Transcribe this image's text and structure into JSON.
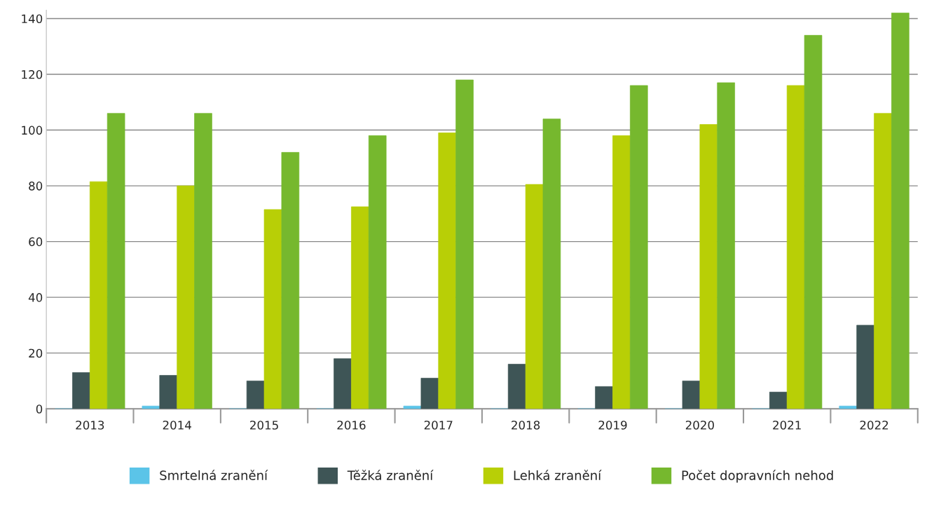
{
  "chart_data": {
    "type": "bar",
    "categories": [
      "2013",
      "2014",
      "2015",
      "2016",
      "2017",
      "2018",
      "2019",
      "2020",
      "2021",
      "2022"
    ],
    "series": [
      {
        "name": "Smrtelná zranění",
        "color": "#5bc4e8",
        "values": [
          0,
          1,
          0,
          0,
          1,
          0,
          0,
          0,
          0,
          1
        ]
      },
      {
        "name": "Těžká zranění",
        "color": "#3e5556",
        "values": [
          13,
          12,
          10,
          18,
          11,
          16,
          8,
          10,
          6,
          30
        ]
      },
      {
        "name": "Lehká zranění",
        "color": "#b8cf06",
        "values": [
          81.5,
          80,
          71.5,
          72.5,
          99,
          80.5,
          98,
          102,
          116,
          106
        ]
      },
      {
        "name": "Počet dopravních nehod",
        "color": "#76b82e",
        "values": [
          106,
          106,
          92,
          98,
          118,
          104,
          116,
          117,
          134,
          142
        ]
      }
    ],
    "ylim": [
      0,
      143
    ],
    "yticks": [
      0,
      20,
      40,
      60,
      80,
      100,
      120,
      140
    ],
    "grid": "y",
    "legend": "bottom"
  }
}
